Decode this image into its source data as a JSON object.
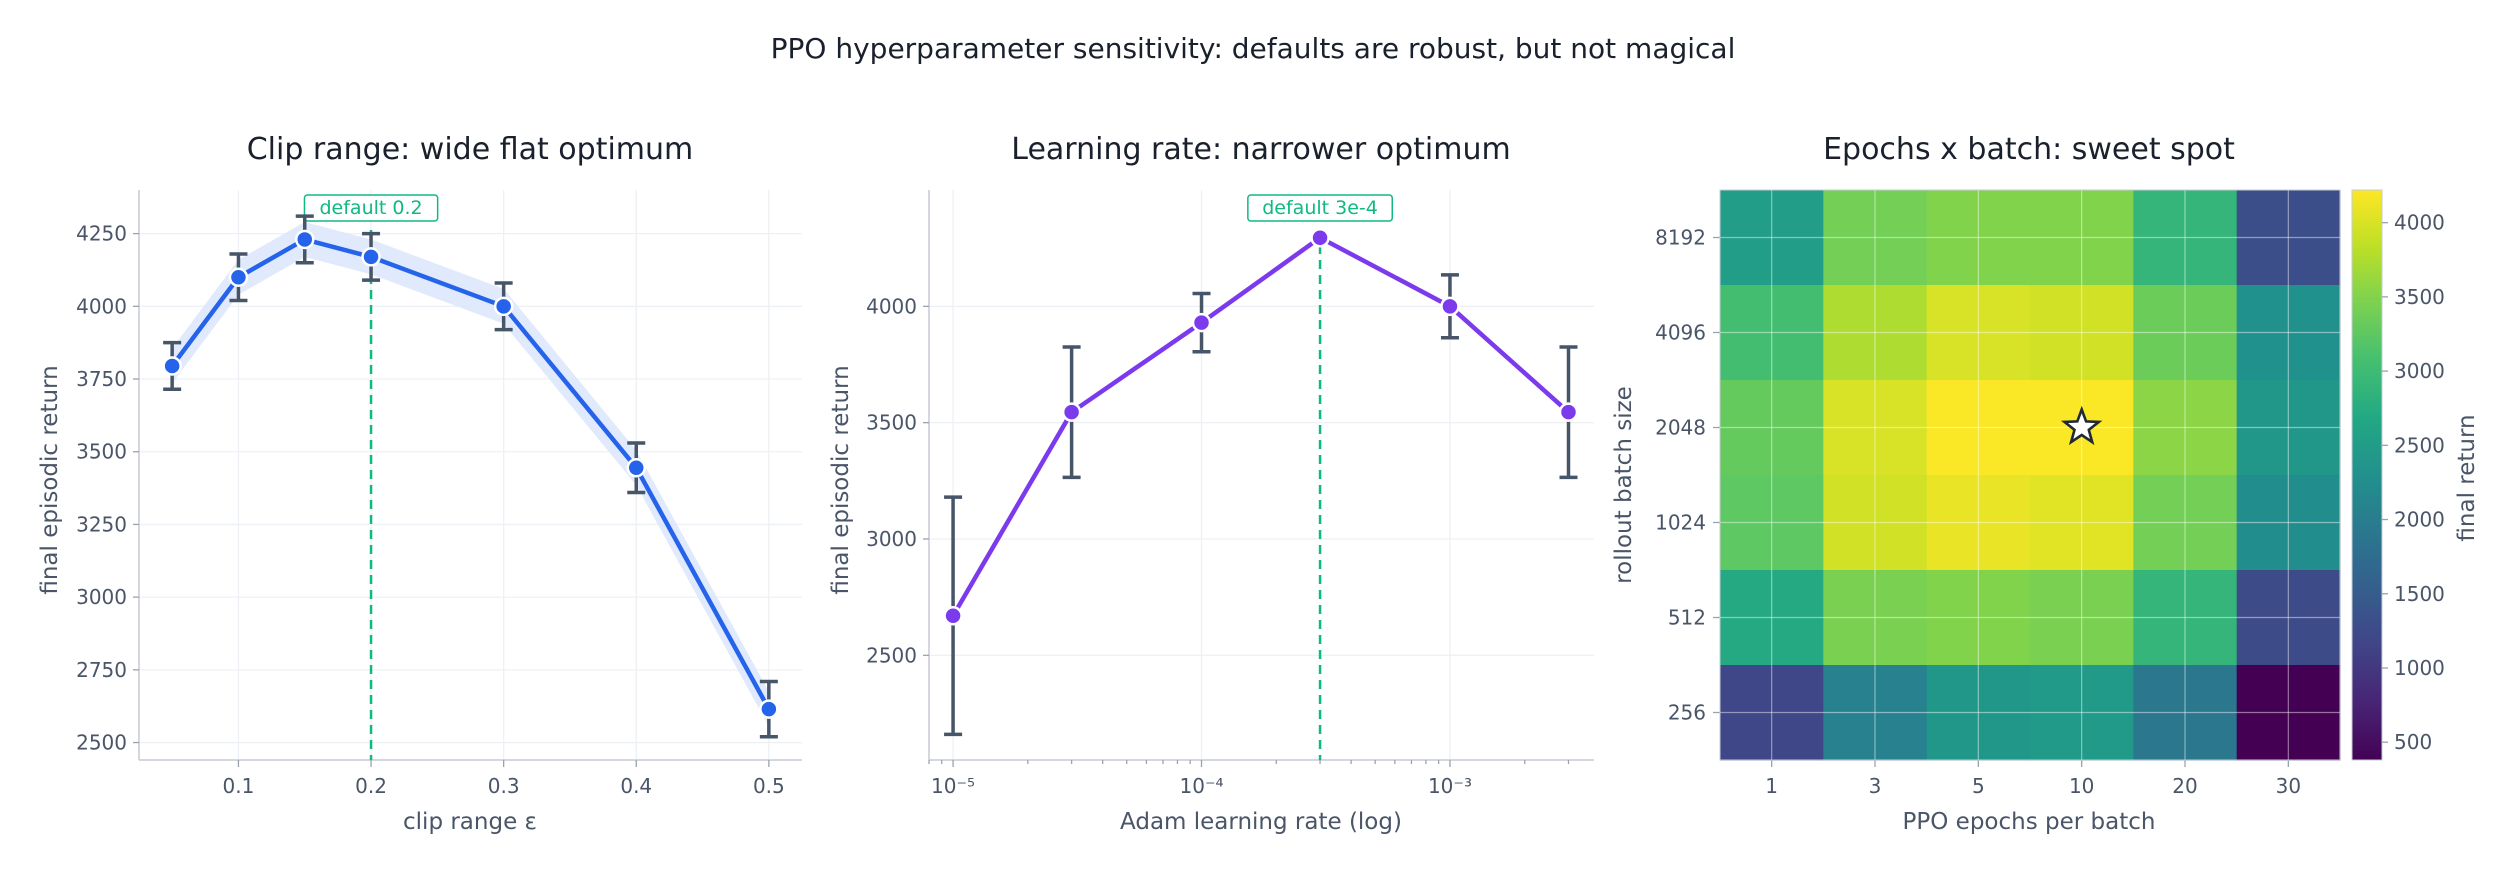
{
  "suptitle": "PPO hyperparameter sensitivity: defaults are robust, but not magical",
  "colors": {
    "clip_line": "#2563eb",
    "clip_band": "#dbe6fb",
    "lr_line": "#7c3aed",
    "errorbar": "#475569",
    "default_line": "#10b981",
    "text": "#4a5568",
    "title": "#1a202c"
  },
  "chart_data": [
    {
      "type": "line",
      "title": "Clip range: wide flat optimum",
      "xlabel": "clip range ε",
      "ylabel": "final episodic return",
      "x": [
        0.05,
        0.1,
        0.15,
        0.2,
        0.3,
        0.4,
        0.5
      ],
      "values": [
        3795,
        4100,
        4230,
        4170,
        4000,
        3445,
        2615
      ],
      "err": [
        80,
        80,
        80,
        80,
        80,
        85,
        95
      ],
      "band_halfwidth": 60,
      "xticks": [
        0.1,
        0.2,
        0.3,
        0.4,
        0.5
      ],
      "xtick_labels": [
        "0.1",
        "0.2",
        "0.3",
        "0.4",
        "0.5"
      ],
      "yticks": [
        2500,
        2750,
        3000,
        3250,
        3500,
        3750,
        4000,
        4250
      ],
      "ytick_labels": [
        "2500",
        "2750",
        "3000",
        "3250",
        "3500",
        "3750",
        "4000",
        "4250"
      ],
      "xlim": [
        0.025,
        0.525
      ],
      "ylim": [
        2440,
        4400
      ],
      "grid": true,
      "default_x": 0.2,
      "default_label": "default 0.2"
    },
    {
      "type": "line",
      "title": "Learning rate: narrower optimum",
      "xlabel": "Adam learning rate (log)",
      "ylabel": "final episodic return",
      "xscale": "log",
      "x": [
        1e-05,
        3e-05,
        0.0001,
        0.0003,
        0.001,
        0.003
      ],
      "values": [
        2670,
        3545,
        3930,
        4295,
        4000,
        3545
      ],
      "err": [
        510,
        280,
        125,
        0,
        135,
        280
      ],
      "xticks": [
        1e-05,
        0.0001,
        0.001
      ],
      "xtick_labels": [
        "10⁻⁵",
        "10⁻⁴",
        "10⁻³"
      ],
      "yticks": [
        2500,
        3000,
        3500,
        4000
      ],
      "ytick_labels": [
        "2500",
        "3000",
        "3500",
        "4000"
      ],
      "xlim": [
        8e-06,
        0.0038
      ],
      "ylim": [
        2050,
        4500
      ],
      "grid": true,
      "default_x": 0.0003,
      "default_label": "default 3e-4"
    },
    {
      "type": "heatmap",
      "title": "Epochs x batch: sweet spot",
      "xlabel": "PPO epochs per batch",
      "ylabel": "rollout batch size",
      "x_categories": [
        "1",
        "3",
        "5",
        "10",
        "20",
        "30"
      ],
      "y_categories": [
        "8192",
        "4096",
        "2048",
        "1024",
        "512",
        "256"
      ],
      "values": [
        [
          2500,
          3400,
          3500,
          3500,
          2900,
          1300
        ],
        [
          3050,
          3750,
          4000,
          3950,
          3350,
          2300
        ],
        [
          3300,
          4000,
          4200,
          4200,
          3550,
          2400
        ],
        [
          3250,
          3950,
          4100,
          4050,
          3400,
          2250
        ],
        [
          2700,
          3450,
          3500,
          3450,
          2900,
          1250
        ],
        [
          1200,
          2050,
          2400,
          2450,
          1900,
          380
        ]
      ],
      "marker": {
        "x": "10",
        "y": "2048",
        "symbol": "star"
      },
      "colorbar_label": "final return",
      "colorbar_ticks": [
        500,
        1000,
        1500,
        2000,
        2500,
        3000,
        3500,
        4000
      ],
      "colorbar_tick_labels": [
        "500",
        "1000",
        "1500",
        "2000",
        "2500",
        "3000",
        "3500",
        "4000"
      ],
      "vmin": 380,
      "vmax": 4220,
      "colormap": "viridis",
      "grid": true
    }
  ]
}
